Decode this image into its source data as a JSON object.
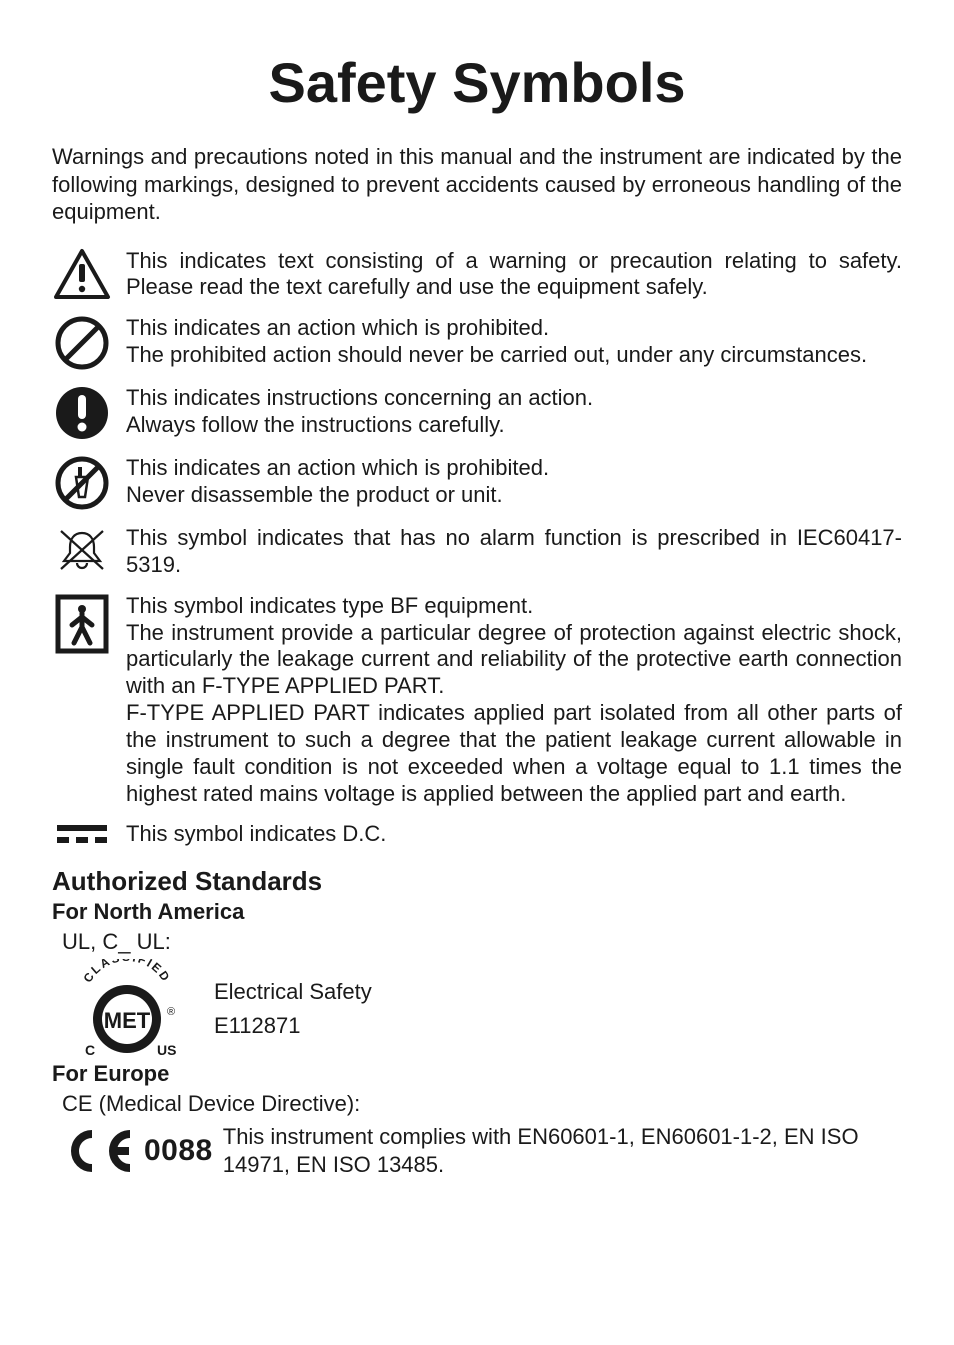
{
  "title": "Safety Symbols",
  "intro": "Warnings and precautions noted in this manual and the instrument are indicated by the following markings, designed to prevent accidents caused by erroneous handling of the equipment.",
  "symbols": [
    {
      "icon": "warning-triangle-icon",
      "text": "This indicates text consisting of a warning or precaution relating to safety. Please read the text carefully and use the equipment safely."
    },
    {
      "icon": "prohibit-icon",
      "text": "This indicates an action which is prohibited.\nThe prohibited action should never be carried out, under any circumstances."
    },
    {
      "icon": "mandatory-icon",
      "text": "This indicates instructions concerning an action.\nAlways follow the instructions carefully."
    },
    {
      "icon": "no-disassemble-icon",
      "text": "This indicates an action which is prohibited.\nNever disassemble the product or unit."
    },
    {
      "icon": "no-alarm-icon",
      "text": "This symbol indicates that has no alarm function is prescribed in IEC60417-5319."
    },
    {
      "icon": "type-bf-icon",
      "text": "This symbol indicates type BF equipment.\nThe instrument provide a particular degree of protection against electric shock, particularly the leakage current and reliability of the protective earth connection with an F-TYPE APPLIED PART.\nF-TYPE APPLIED PART indicates applied part isolated from all other parts of the instrument to such a degree that the patient leakage current allowable in single fault condition is not exceeded when a voltage equal to 1.1 times the highest rated mains voltage is applied between the applied part and earth."
    },
    {
      "icon": "dc-icon",
      "text": "This symbol indicates D.C."
    }
  ],
  "standards": {
    "title": "Authorized Standards",
    "north_america": {
      "heading": "For North America",
      "ul_line": "UL, C_ UL:",
      "safety_label": "Electrical Safety",
      "cert_number": "E112871",
      "mark_top": "CLASSIFIED",
      "mark_center": "MET",
      "mark_c": "C",
      "mark_us": "US",
      "mark_reg": "®"
    },
    "europe": {
      "heading": "For Europe",
      "ce_line": "CE (Medical Device Directive):",
      "ce_number": "0088",
      "ce_text": "This instrument complies with EN60601-1, EN60601-1-2, EN ISO 14971, EN ISO 13485."
    }
  },
  "colors": {
    "text": "#1a1a1a",
    "background": "#ffffff",
    "icon_stroke": "#1a1a1a",
    "icon_fill_solid": "#1a1a1a"
  }
}
